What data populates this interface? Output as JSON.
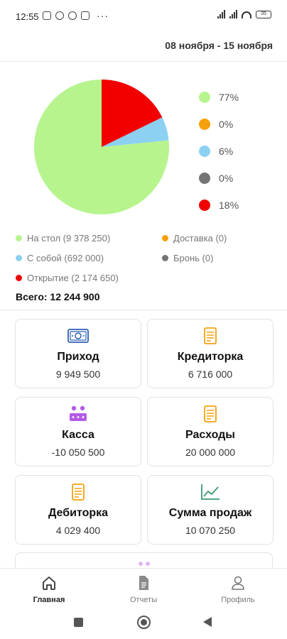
{
  "status_bar": {
    "time": "12:55",
    "more": "···",
    "battery": "35",
    "icons": [
      "mute-icon",
      "record-icon",
      "settings-icon",
      "mail-icon",
      "signal-icon",
      "signal-icon",
      "wifi-icon",
      "battery-icon"
    ]
  },
  "header": {
    "date_range": "08 ноября - 15 ноября"
  },
  "pie_legend": [
    {
      "label": "77%",
      "color": "#b7f48e"
    },
    {
      "label": "0%",
      "color": "#f5a00c"
    },
    {
      "label": "6%",
      "color": "#8cd0f2"
    },
    {
      "label": "0%",
      "color": "#747474"
    },
    {
      "label": "18%",
      "color": "#f20000"
    }
  ],
  "categories": [
    {
      "label": "На стол (9 378 250)",
      "color": "#b7f48e"
    },
    {
      "label": "Доставка (0)",
      "color": "#f5a00c"
    },
    {
      "label": "С собой (692 000)",
      "color": "#8cd0f2"
    },
    {
      "label": "Бронь (0)",
      "color": "#747474"
    },
    {
      "label": "Открытие (2 174 650)",
      "color": "#f20000"
    }
  ],
  "total": "Всего: 12 244 900",
  "chart_data": {
    "type": "pie",
    "labels": [
      "На стол",
      "Доставка",
      "С собой",
      "Бронь",
      "Открытие"
    ],
    "values": [
      9378250,
      0,
      692000,
      0,
      2174650
    ],
    "percent_labels": [
      "77%",
      "0%",
      "6%",
      "0%",
      "18%"
    ],
    "colors": [
      "#b7f48e",
      "#f5a00c",
      "#8cd0f2",
      "#747474",
      "#f20000"
    ],
    "legend": "right"
  },
  "cards": [
    {
      "title": "Приход",
      "value": "9 949 500",
      "icon": "cash-icon",
      "color": "#2f5fb5"
    },
    {
      "title": "Кредиторка",
      "value": "6 716 000",
      "icon": "document-list-icon",
      "color": "#f5a00c"
    },
    {
      "title": "Касса",
      "value": "-10 050 500",
      "icon": "cash-register-icon",
      "color": "#b45ce6"
    },
    {
      "title": "Расходы",
      "value": "20 000 000",
      "icon": "document-list-icon",
      "color": "#f5a00c"
    },
    {
      "title": "Дебиторка",
      "value": "4 029 400",
      "icon": "document-list-icon",
      "color": "#f5a00c"
    },
    {
      "title": "Сумма продаж",
      "value": "10 070 250",
      "icon": "line-chart-icon",
      "color": "#3a9a6e"
    }
  ],
  "bottom_nav": [
    {
      "label": "Главная",
      "icon": "home-icon",
      "active": true
    },
    {
      "label": "Отчеты",
      "icon": "report-document-icon",
      "active": false
    },
    {
      "label": "Профиль",
      "icon": "profile-icon",
      "active": false
    }
  ]
}
